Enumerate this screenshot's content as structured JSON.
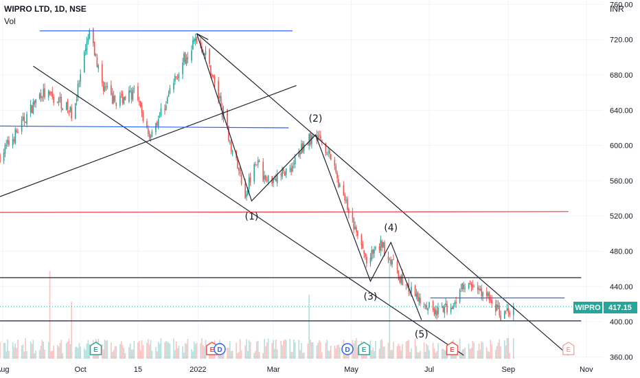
{
  "header": {
    "title": "WIPRO LTD, 1D, NSE",
    "volume_label": "Vol",
    "currency": "INR"
  },
  "colors": {
    "up": "#26a69a",
    "down": "#ef5350",
    "trend": "#1e222d",
    "support_blue": "#2962ff",
    "resistance_red": "#f23645",
    "badge": "#26a69a"
  },
  "chart_data": {
    "type": "candlestick",
    "symbol": "WIPRO",
    "last_price": 417.15,
    "last_price_label": "417.15",
    "ylim": [
      358,
      765
    ],
    "y_ticks": [
      360,
      400,
      440,
      480,
      520,
      560,
      600,
      640,
      680,
      720,
      760
    ],
    "y_tick_labels": [
      "360.00",
      "400.00",
      "440.00",
      "480.00",
      "520.00",
      "560.00",
      "600.00",
      "640.00",
      "680.00",
      "720.00",
      "760.00"
    ],
    "x_range": [
      "2021-07-30",
      "2022-11-14"
    ],
    "x_ticks": [
      {
        "date": "2021-08-01",
        "label": "Aug"
      },
      {
        "date": "2021-10-01",
        "label": "Oct"
      },
      {
        "date": "2021-11-15",
        "label": "15"
      },
      {
        "date": "2022-01-01",
        "label": "2022"
      },
      {
        "date": "2022-03-01",
        "label": "Mar"
      },
      {
        "date": "2022-05-01",
        "label": "May"
      },
      {
        "date": "2022-07-01",
        "label": "Jul"
      },
      {
        "date": "2022-09-01",
        "label": "Sep"
      },
      {
        "date": "2022-11-01",
        "label": "Nov"
      }
    ],
    "price_path": [
      [
        "2021-07-30",
        588
      ],
      [
        "2021-08-12",
        615
      ],
      [
        "2021-08-31",
        660
      ],
      [
        "2021-09-15",
        650
      ],
      [
        "2021-09-25",
        635
      ],
      [
        "2021-10-08",
        728
      ],
      [
        "2021-10-18",
        670
      ],
      [
        "2021-10-27",
        650
      ],
      [
        "2021-11-12",
        660
      ],
      [
        "2021-11-24",
        612
      ],
      [
        "2021-12-05",
        642
      ],
      [
        "2021-12-18",
        690
      ],
      [
        "2021-12-31",
        722
      ],
      [
        "2022-01-08",
        700
      ],
      [
        "2022-01-18",
        650
      ],
      [
        "2022-01-27",
        600
      ],
      [
        "2022-02-07",
        545
      ],
      [
        "2022-02-15",
        585
      ],
      [
        "2022-02-23",
        560
      ],
      [
        "2022-03-03",
        565
      ],
      [
        "2022-03-15",
        575
      ],
      [
        "2022-03-25",
        602
      ],
      [
        "2022-04-04",
        613
      ],
      [
        "2022-04-14",
        590
      ],
      [
        "2022-04-25",
        540
      ],
      [
        "2022-05-05",
        500
      ],
      [
        "2022-05-13",
        468
      ],
      [
        "2022-05-25",
        488
      ],
      [
        "2022-06-02",
        467
      ],
      [
        "2022-06-10",
        445
      ],
      [
        "2022-06-20",
        428
      ],
      [
        "2022-06-28",
        422
      ],
      [
        "2022-07-08",
        410
      ],
      [
        "2022-07-18",
        418
      ],
      [
        "2022-07-28",
        440
      ],
      [
        "2022-08-08",
        438
      ],
      [
        "2022-08-18",
        425
      ],
      [
        "2022-08-26",
        408
      ],
      [
        "2022-09-05",
        417
      ]
    ],
    "trendlines": [
      {
        "style": "black",
        "from": [
          "2021-07-30",
          542
        ],
        "to": [
          "2022-03-19",
          668
        ]
      },
      {
        "style": "black",
        "from": [
          "2021-08-25",
          690
        ],
        "to": [
          "2022-07-28",
          362
        ]
      },
      {
        "style": "black",
        "from": [
          "2021-12-31",
          727
        ],
        "to": [
          "2022-10-18",
          362
        ]
      },
      {
        "style": "black",
        "from": [
          "2021-12-31",
          727
        ],
        "to": [
          "2022-01-09",
          720
        ]
      },
      {
        "style": "black",
        "from": [
          "2021-07-30",
          450
        ],
        "to": [
          "2022-10-28",
          450
        ]
      },
      {
        "style": "black",
        "from": [
          "2021-07-30",
          401
        ],
        "to": [
          "2022-10-28",
          401
        ]
      },
      {
        "style": "blue",
        "from": [
          "2021-07-30",
          622
        ],
        "to": [
          "2022-03-13",
          620
        ]
      },
      {
        "style": "blue",
        "from": [
          "2021-08-30",
          730
        ],
        "to": [
          "2022-03-16",
          730
        ]
      },
      {
        "style": "blue",
        "from": [
          "2022-07-02",
          427
        ],
        "to": [
          "2022-10-15",
          427
        ]
      },
      {
        "style": "red",
        "from": [
          "2021-07-30",
          524
        ],
        "to": [
          "2022-10-18",
          525
        ]
      }
    ],
    "waves": [
      {
        "label": "(1)",
        "date": "2022-02-12",
        "price": 537,
        "label_price": 516
      },
      {
        "label": "(2)",
        "date": "2022-04-03",
        "price": 612,
        "label_price": 627
      },
      {
        "label": "(3)",
        "date": "2022-05-16",
        "price": 446,
        "label_price": 425
      },
      {
        "label": "(4)",
        "date": "2022-06-01",
        "price": 490,
        "label_price": 503
      },
      {
        "label": "(5)",
        "date": "2022-06-25",
        "price": 402,
        "label_price": 382
      }
    ],
    "events": [
      {
        "type": "E",
        "date": "2021-10-13",
        "style": "green"
      },
      {
        "type": "E",
        "date": "2022-01-12",
        "style": "red"
      },
      {
        "type": "D",
        "date": "2022-01-18",
        "style": "blue"
      },
      {
        "type": "D",
        "date": "2022-04-28",
        "style": "blue"
      },
      {
        "type": "E",
        "date": "2022-05-11",
        "style": "green"
      },
      {
        "type": "E",
        "date": "2022-07-19",
        "style": "red"
      },
      {
        "type": "E",
        "date": "2022-10-18",
        "style": "red-outline"
      }
    ]
  }
}
